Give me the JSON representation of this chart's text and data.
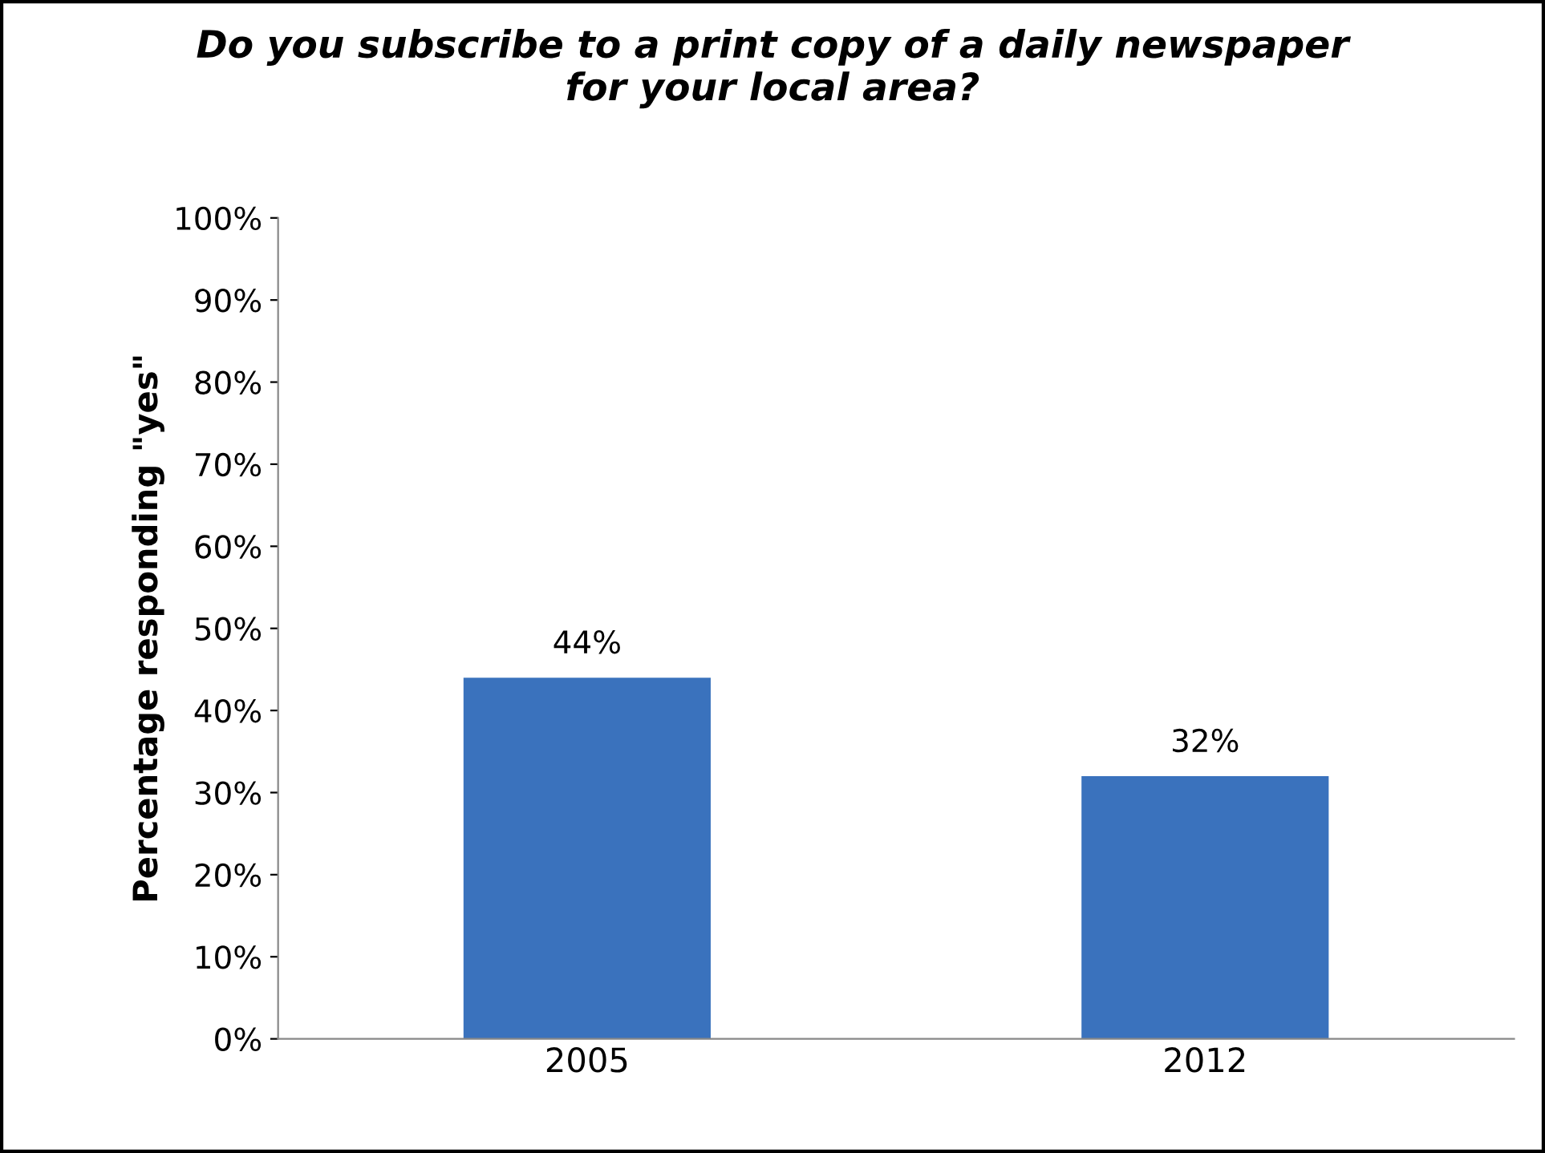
{
  "chart_data": {
    "type": "bar",
    "title": "Do you subscribe to a print copy of a daily newspaper\nfor your local area?",
    "ylabel": "Percentage responding \"yes\"",
    "categories": [
      "2005",
      "2012"
    ],
    "values": [
      44,
      32
    ],
    "value_labels": [
      "44%",
      "32%"
    ],
    "color": "#3a72bd",
    "ylim": [
      0,
      100
    ],
    "yticks": [
      {
        "value": 0,
        "label": "0%"
      },
      {
        "value": 10,
        "label": "10%"
      },
      {
        "value": 20,
        "label": "20%"
      },
      {
        "value": 30,
        "label": "30%"
      },
      {
        "value": 40,
        "label": "40%"
      },
      {
        "value": 50,
        "label": "50%"
      },
      {
        "value": 60,
        "label": "60%"
      },
      {
        "value": 70,
        "label": "70%"
      },
      {
        "value": 80,
        "label": "80%"
      },
      {
        "value": 90,
        "label": "90%"
      },
      {
        "value": 100,
        "label": "100%"
      }
    ],
    "grid": false,
    "legend": false
  }
}
